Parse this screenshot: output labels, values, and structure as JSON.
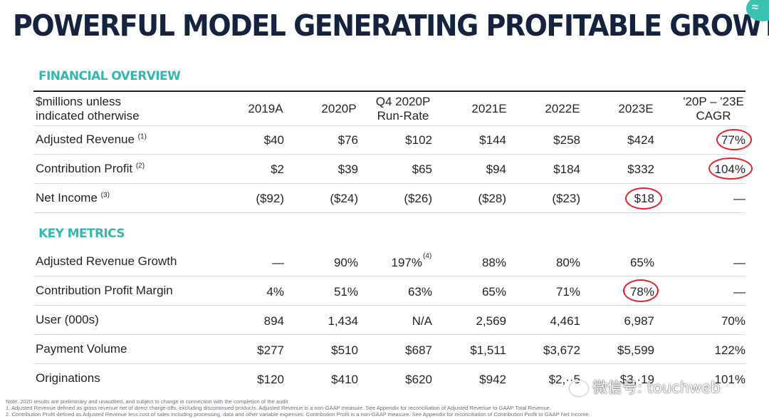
{
  "title": "POWERFUL MODEL GENERATING PROFITABLE GROWTH",
  "sections": {
    "financial": "FINANCIAL OVERVIEW",
    "metrics": "KEY METRICS"
  },
  "header": {
    "label_line1": "$millions unless",
    "label_line2": "indicated otherwise",
    "columns": [
      {
        "line1": "2019A",
        "line2": ""
      },
      {
        "line1": "2020P",
        "line2": ""
      },
      {
        "line1": "Q4 2020P",
        "line2": "Run-Rate"
      },
      {
        "line1": "2021E",
        "line2": ""
      },
      {
        "line1": "2022E",
        "line2": ""
      },
      {
        "line1": "2023E",
        "line2": ""
      },
      {
        "line1": "'20P – '23E",
        "line2": "CAGR"
      }
    ]
  },
  "financial_rows": [
    {
      "label": "Adjusted Revenue",
      "note": "(1)",
      "values": [
        "$40",
        "$76",
        "$102",
        "$144",
        "$258",
        "$424",
        "77%"
      ]
    },
    {
      "label": "Contribution Profit",
      "note": "(2)",
      "values": [
        "$2",
        "$39",
        "$65",
        "$94",
        "$184",
        "$332",
        "104%"
      ]
    },
    {
      "label": "Net Income",
      "note": "(3)",
      "values": [
        "($92)",
        "($24)",
        "($26)",
        "($28)",
        "($23)",
        "$18",
        "—"
      ]
    }
  ],
  "metric_rows": [
    {
      "label": "Adjusted Revenue Growth",
      "values": [
        "—",
        "90%",
        "197%",
        "88%",
        "80%",
        "65%",
        "—"
      ],
      "sup_col": 2,
      "sup": "(4)"
    },
    {
      "label": "Contribution Profit Margin",
      "values": [
        "4%",
        "51%",
        "63%",
        "65%",
        "71%",
        "78%",
        "—"
      ]
    },
    {
      "label": "User (000s)",
      "values": [
        "894",
        "1,434",
        "N/A",
        "2,569",
        "4,461",
        "6,987",
        "70%"
      ]
    },
    {
      "label": "Payment Volume",
      "values": [
        "$277",
        "$510",
        "$687",
        "$1,511",
        "$3,672",
        "$5,599",
        "122%"
      ]
    },
    {
      "label": "Originations",
      "values": [
        "$120",
        "$410",
        "$620",
        "$942",
        "$2,··5",
        "$3,·19",
        "101%"
      ]
    }
  ],
  "notes": [
    "Note: 2020 results are preliminary and unaudited, and subject to change in connection with the completion of the audit",
    "1.  Adjusted Revenue defined as gross revenue net of direct charge-offs, excluding discontinued products. Adjusted Revenue is a non-GAAP measure. See Appendix for reconciliation of Adjusted Revenue to GAAP Total Revenue.",
    "2.  Contribution Profit defined as Adjusted Revenue less cost of sales including processing, data and other variable expenses. Contribution Profit is a non-GAAP measure. See Appendix for reconciliation of Contribution Profit to GAAP Net Income."
  ],
  "watermark": "微信号: touchweb",
  "colors": {
    "title": "#15233f",
    "section": "#35b7ad",
    "circle": "#e0242c"
  }
}
